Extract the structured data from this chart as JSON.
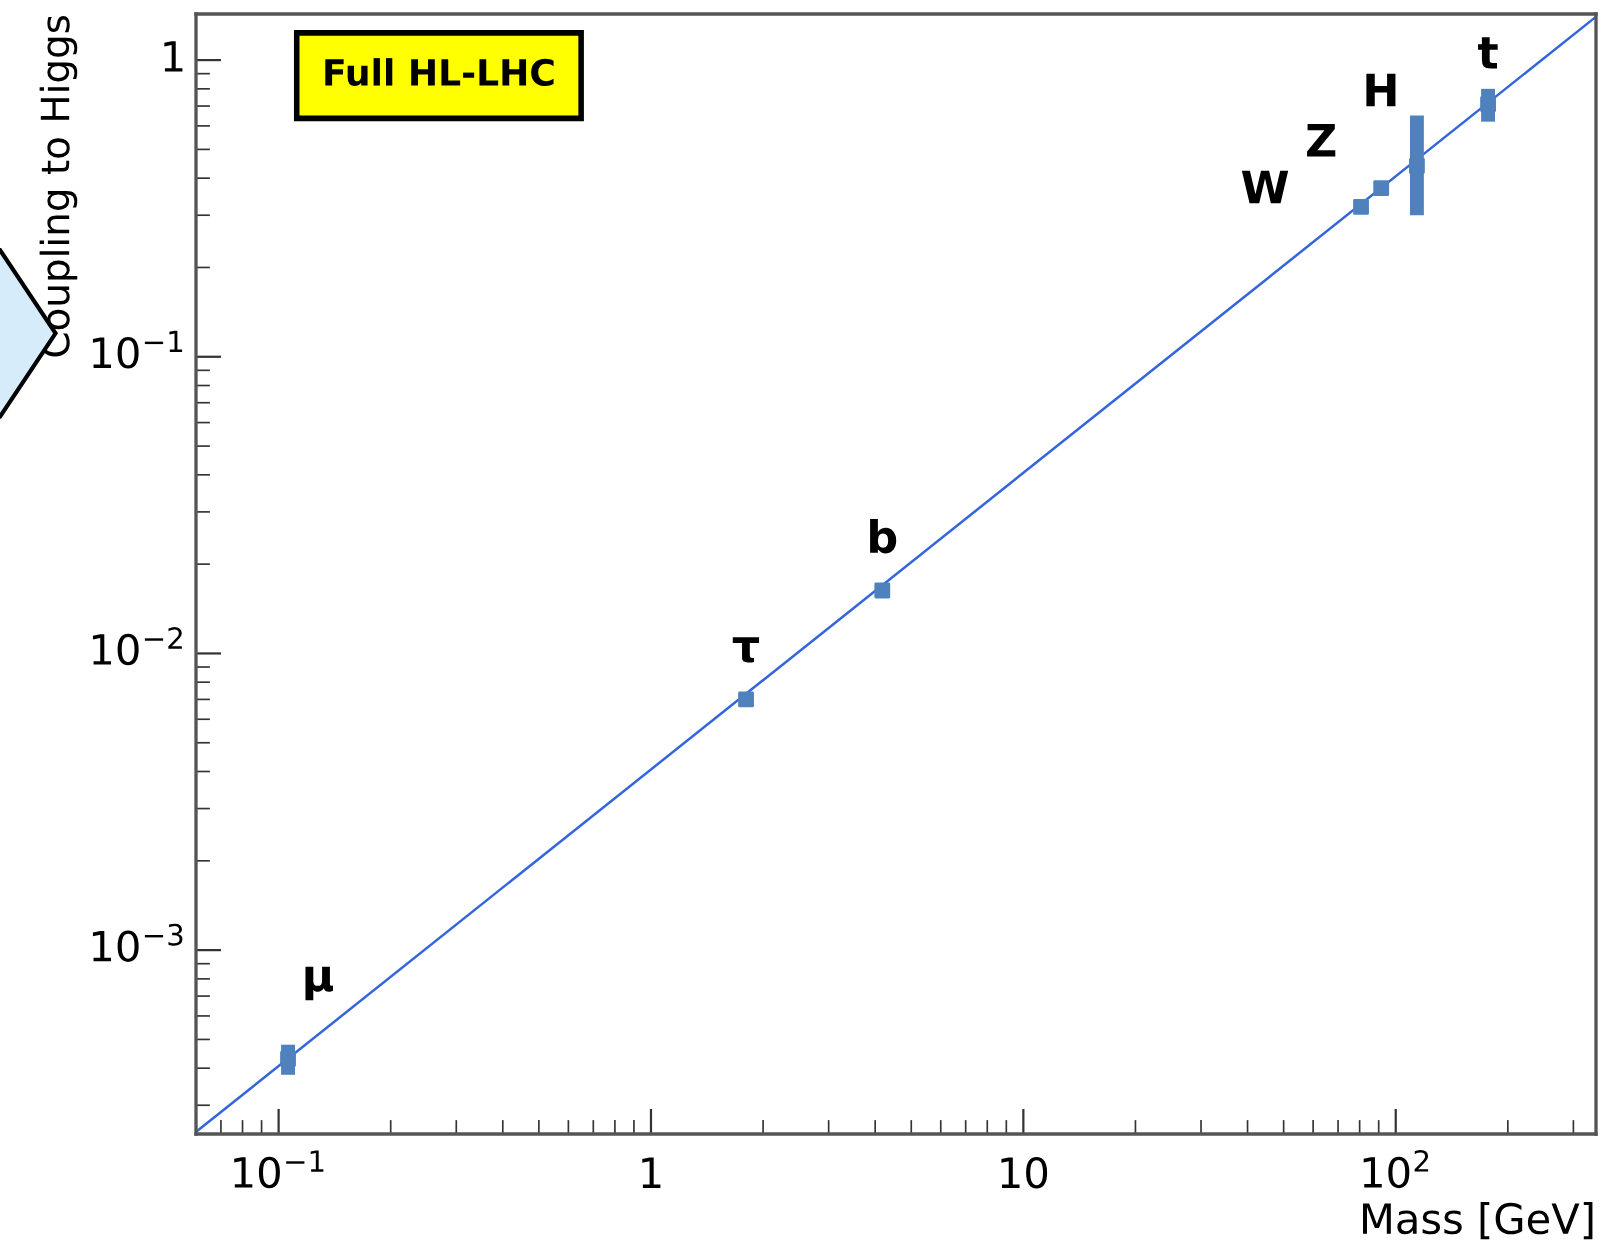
{
  "chart_data": {
    "type": "scatter",
    "xlabel": "Mass [GeV]",
    "ylabel": "Coupling to Higgs",
    "log": "xy",
    "grid": false,
    "xlim": [
      0.06,
      345
    ],
    "ylim": [
      0.00024,
      1.43
    ],
    "xticks": [
      {
        "value": 0.1,
        "label": "10$^{−1}$"
      },
      1,
      10,
      {
        "value": 100,
        "label": "10$^{2}$"
      }
    ],
    "yticks": [
      {
        "value": 0.001,
        "label": "10$^{−3}$"
      },
      {
        "value": 0.01,
        "label": "10$^{−2}$"
      },
      {
        "value": 0.1,
        "label": "10$^{−1}$"
      },
      1
    ],
    "series": [
      {
        "type": "line",
        "color": "#3366dd",
        "x": [
          0.06,
          345
        ],
        "values": [
          0.000244,
          1.4
        ]
      },
      {
        "color": "#4f81bd",
        "marker": "square",
        "x": [
          0.106,
          1.8,
          4.18,
          80.7,
          91.4,
          114,
          177
        ],
        "values": [
          0.00043,
          0.007,
          0.0163,
          0.32,
          0.37,
          0.44,
          0.71
        ],
        "errors": [
          5e-05,
          null,
          null,
          null,
          null,
          [
            0.3,
            0.65
          ],
          0.09
        ]
      }
    ],
    "annotations": [
      "Full HL-LHC",
      "μ",
      "τ",
      "b",
      "W",
      "Z",
      "H",
      "t"
    ]
  }
}
